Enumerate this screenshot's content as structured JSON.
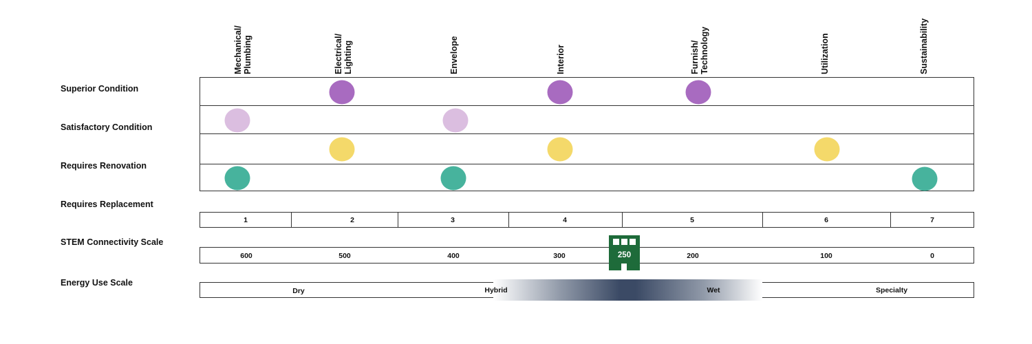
{
  "columns": [
    "Mechanical/\nPlumbing",
    "Electrical/\nLighting",
    "Envelope",
    "Interior",
    "Furnish/\nTechnology",
    "Utilization",
    "Sustainability"
  ],
  "row_labels": {
    "superior": "Superior Condition",
    "satisfactory": "Satisfactory Condition",
    "renovation": "Requires Renovation",
    "replacement": "Requires Replacement",
    "stem": "STEM Connectivity Scale",
    "energy": "Energy Use Scale"
  },
  "colors": {
    "superior": "#a86bc0",
    "satisfactory": "#dbbee0",
    "renovation": "#f4d96a",
    "replacement": "#47b39d",
    "building": "#1e6b3a"
  },
  "markers": [
    {
      "row": "superior",
      "columns": [
        "Electrical/\nLighting",
        "Interior",
        "Furnish/\nTechnology"
      ]
    },
    {
      "row": "satisfactory",
      "columns": [
        "Mechanical/\nPlumbing",
        "Envelope"
      ]
    },
    {
      "row": "renovation",
      "columns": [
        "Electrical/\nLighting",
        "Interior",
        "Utilization"
      ]
    },
    {
      "row": "replacement",
      "columns": [
        "Mechanical/\nPlumbing",
        "Envelope",
        "Sustainability"
      ]
    }
  ],
  "stem_scale": [
    "1",
    "2",
    "3",
    "4",
    "5",
    "6",
    "7"
  ],
  "energy_use_scale": [
    "600",
    "500",
    "400",
    "300",
    "200",
    "100",
    "0"
  ],
  "energy_marker_value": "250",
  "energy_type_scale": [
    "Dry",
    "Hybrid",
    "Wet",
    "Specialty"
  ],
  "building_icon": "building-icon"
}
